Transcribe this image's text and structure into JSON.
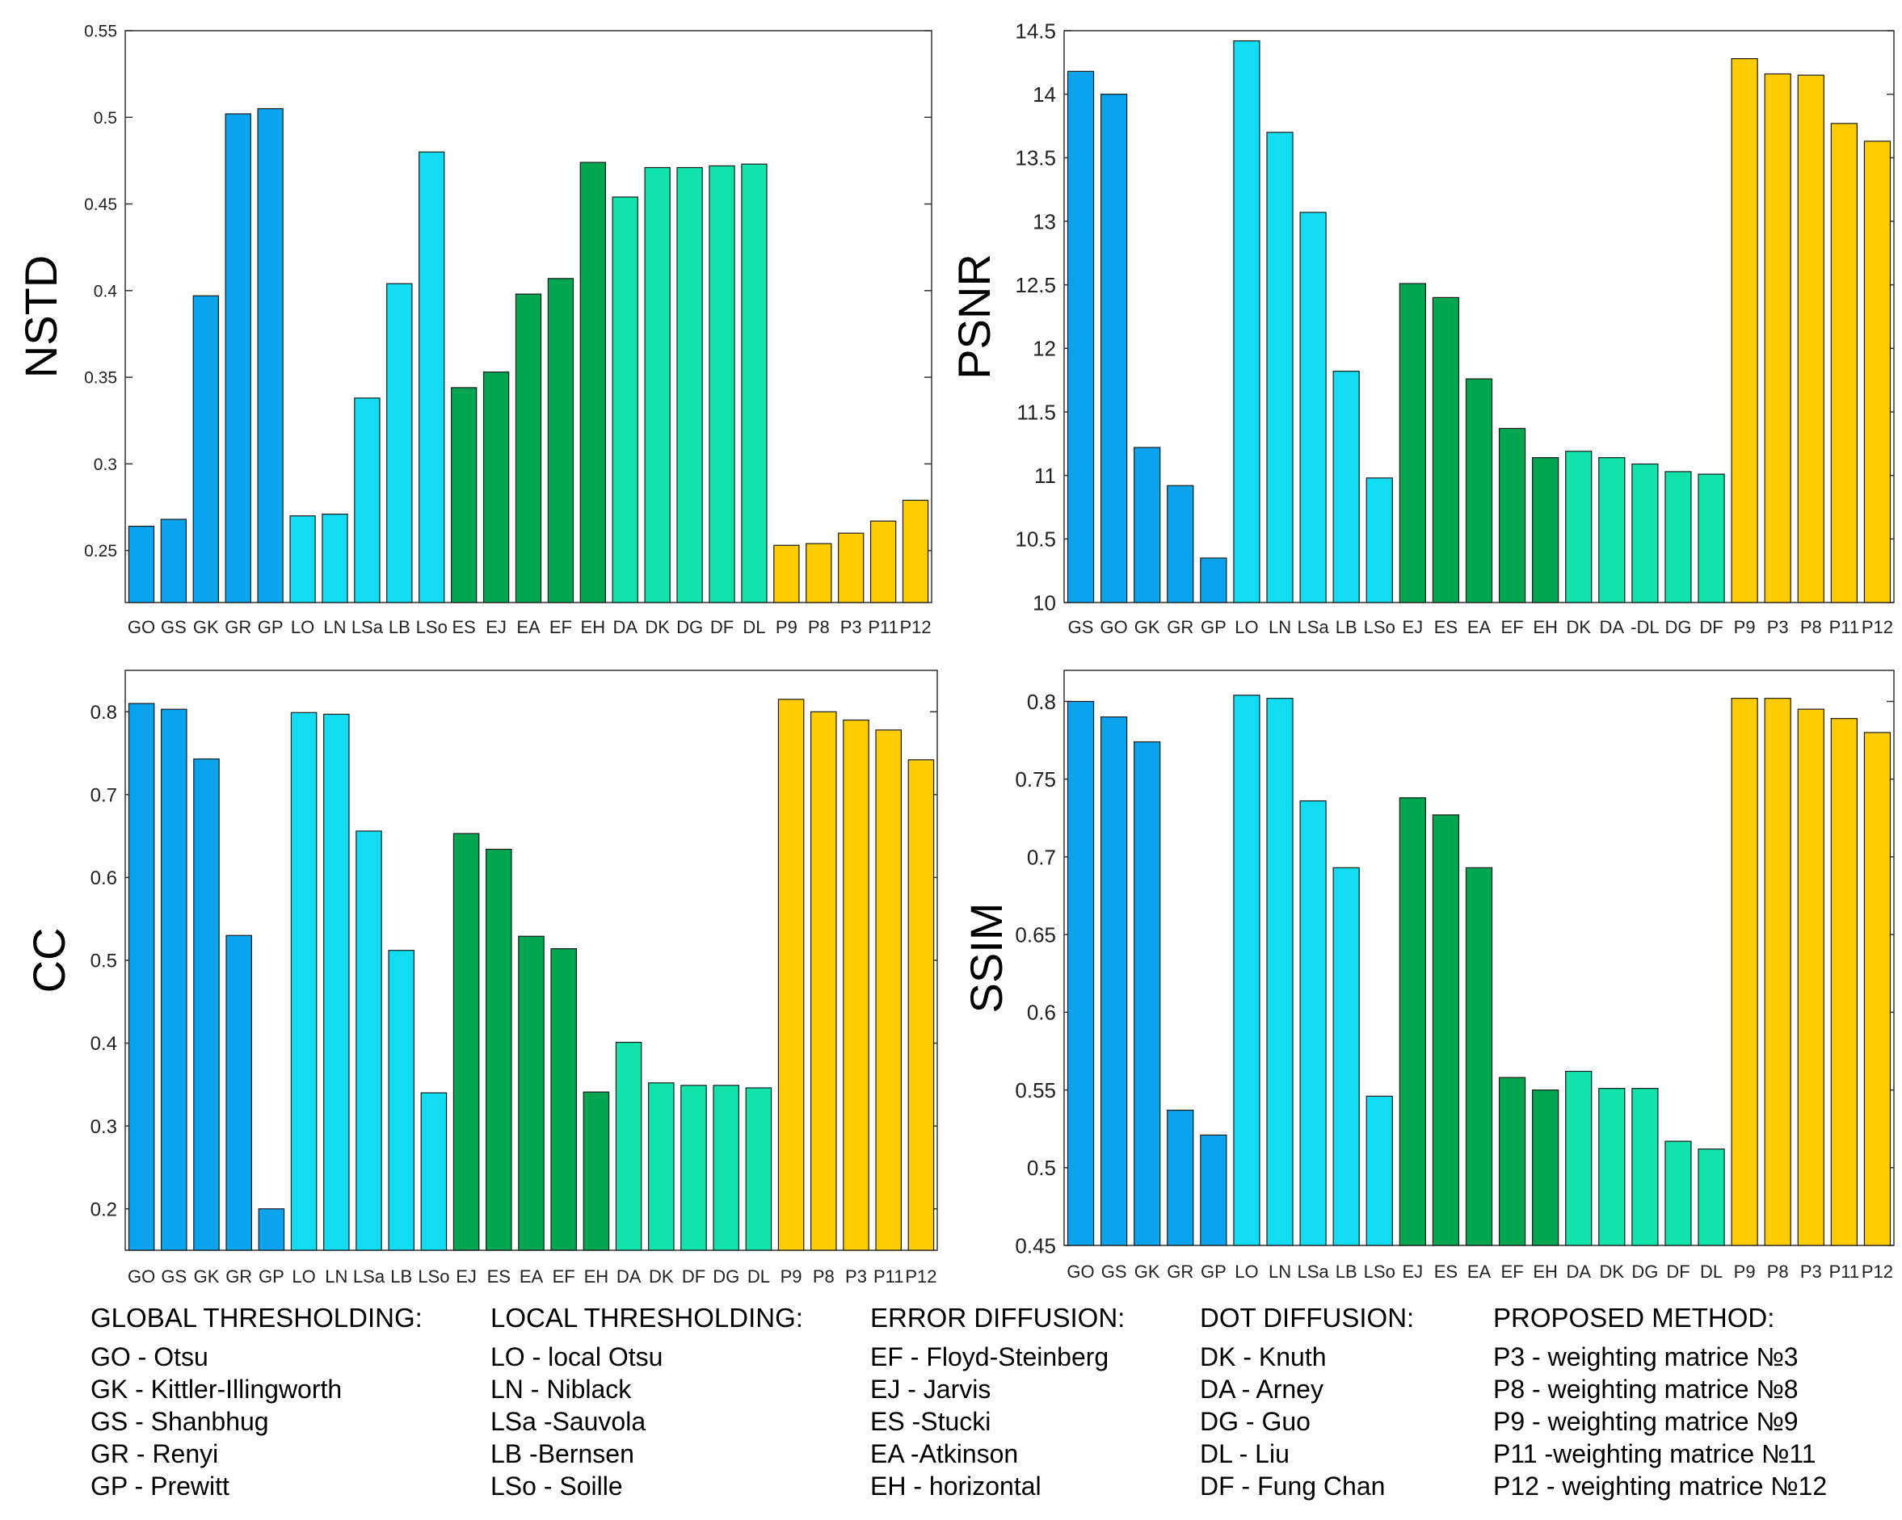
{
  "chart_data": [
    {
      "type": "bar",
      "ylabel": "NSTD",
      "ylim": [
        0.22,
        0.55
      ],
      "yticks": [
        0.25,
        0.3,
        0.35,
        0.4,
        0.45,
        0.5,
        0.55
      ],
      "tick_labels": [
        "0.25",
        "0.3",
        "0.35",
        "0.4",
        "0.45",
        "0.5",
        "0.55"
      ],
      "categories": [
        "GO",
        "GS",
        "GK",
        "GR",
        "GP",
        "LO",
        "LN",
        "LSa",
        "LB",
        "LSo",
        "ES",
        "EJ",
        "EA",
        "EF",
        "EH",
        "DA",
        "DK",
        "DG",
        "DF",
        "DL",
        "P9",
        "P8",
        "P3",
        "P11",
        "P12"
      ],
      "values": [
        0.264,
        0.268,
        0.397,
        0.502,
        0.505,
        0.27,
        0.271,
        0.338,
        0.404,
        0.48,
        0.344,
        0.353,
        0.398,
        0.407,
        0.474,
        0.454,
        0.471,
        0.471,
        0.472,
        0.473,
        0.253,
        0.254,
        0.26,
        0.267,
        0.279
      ],
      "groups": [
        "global",
        "global",
        "global",
        "global",
        "global",
        "local",
        "local",
        "local",
        "local",
        "local",
        "error",
        "error",
        "error",
        "error",
        "error",
        "dot",
        "dot",
        "dot",
        "dot",
        "dot",
        "proposed",
        "proposed",
        "proposed",
        "proposed",
        "proposed"
      ]
    },
    {
      "type": "bar",
      "ylabel": "PSNR",
      "ylim": [
        10,
        14.5
      ],
      "yticks": [
        10,
        10.5,
        11,
        11.5,
        12,
        12.5,
        13,
        13.5,
        14,
        14.5
      ],
      "tick_labels": [
        "10",
        "10.5",
        "11",
        "11.5",
        "12",
        "12.5",
        "13",
        "13.5",
        "14",
        "14.5"
      ],
      "categories": [
        "GS",
        "GO",
        "GK",
        "GR",
        "GP",
        "LO",
        "LN",
        "LSa",
        "LB",
        "LSo",
        "EJ",
        "ES",
        "EA",
        "EF",
        "EH",
        "DK",
        "DA",
        "-DL",
        "DG",
        "DF",
        "P9",
        "P3",
        "P8",
        "P11",
        "P12"
      ],
      "values": [
        14.18,
        14.0,
        11.22,
        10.92,
        10.35,
        14.42,
        13.7,
        13.07,
        11.82,
        10.98,
        12.51,
        12.4,
        11.76,
        11.37,
        11.14,
        11.19,
        11.14,
        11.09,
        11.03,
        11.01,
        14.28,
        14.16,
        14.15,
        13.77,
        13.63
      ],
      "groups": [
        "global",
        "global",
        "global",
        "global",
        "global",
        "local",
        "local",
        "local",
        "local",
        "local",
        "error",
        "error",
        "error",
        "error",
        "error",
        "dot",
        "dot",
        "dot",
        "dot",
        "dot",
        "proposed",
        "proposed",
        "proposed",
        "proposed",
        "proposed"
      ]
    },
    {
      "type": "bar",
      "ylabel": "CC",
      "ylim": [
        0.15,
        0.85
      ],
      "yticks": [
        0.2,
        0.3,
        0.4,
        0.5,
        0.6,
        0.7,
        0.8
      ],
      "tick_labels": [
        "0.2",
        "0.3",
        "0.4",
        "0.5",
        "0.6",
        "0.7",
        "0.8"
      ],
      "categories": [
        "GO",
        "GS",
        "GK",
        "GR",
        "GP",
        "LO",
        "LN",
        "LSa",
        "LB",
        "LSo",
        "EJ",
        "ES",
        "EA",
        "EF",
        "EH",
        "DA",
        "DK",
        "DF",
        "DG",
        "DL",
        "P9",
        "P8",
        "P3",
        "P11",
        "P12"
      ],
      "values": [
        0.81,
        0.803,
        0.743,
        0.53,
        0.2,
        0.799,
        0.797,
        0.656,
        0.512,
        0.34,
        0.653,
        0.634,
        0.529,
        0.514,
        0.341,
        0.401,
        0.352,
        0.349,
        0.349,
        0.346,
        0.815,
        0.8,
        0.79,
        0.778,
        0.742
      ],
      "groups": [
        "global",
        "global",
        "global",
        "global",
        "global",
        "local",
        "local",
        "local",
        "local",
        "local",
        "error",
        "error",
        "error",
        "error",
        "error",
        "dot",
        "dot",
        "dot",
        "dot",
        "dot",
        "proposed",
        "proposed",
        "proposed",
        "proposed",
        "proposed"
      ]
    },
    {
      "type": "bar",
      "ylabel": "SSIM",
      "ylim": [
        0.45,
        0.82
      ],
      "yticks": [
        0.45,
        0.5,
        0.55,
        0.6,
        0.65,
        0.7,
        0.75,
        0.8
      ],
      "tick_labels": [
        "0.45",
        "0.5",
        "0.55",
        "0.6",
        "0.65",
        "0.7",
        "0.75",
        "0.8"
      ],
      "categories": [
        "GO",
        "GS",
        "GK",
        "GR",
        "GP",
        "LO",
        "LN",
        "LSa",
        "LB",
        "LSo",
        "EJ",
        "ES",
        "EA",
        "EF",
        "EH",
        "DA",
        "DK",
        "DG",
        "DF",
        "DL",
        "P9",
        "P8",
        "P3",
        "P11",
        "P12"
      ],
      "values": [
        0.8,
        0.79,
        0.774,
        0.537,
        0.521,
        0.804,
        0.802,
        0.736,
        0.693,
        0.546,
        0.738,
        0.727,
        0.693,
        0.558,
        0.55,
        0.562,
        0.551,
        0.551,
        0.517,
        0.512,
        0.802,
        0.802,
        0.795,
        0.789,
        0.78
      ],
      "groups": [
        "global",
        "global",
        "global",
        "global",
        "global",
        "local",
        "local",
        "local",
        "local",
        "local",
        "error",
        "error",
        "error",
        "error",
        "error",
        "dot",
        "dot",
        "dot",
        "dot",
        "dot",
        "proposed",
        "proposed",
        "proposed",
        "proposed",
        "proposed"
      ]
    }
  ],
  "colors": {
    "global": "#0aa4ee",
    "local": "#12dcf2",
    "error": "#00a650",
    "dot": "#12e3aa",
    "proposed": "#ffcc00",
    "axis": "#333333"
  },
  "legend": {
    "global": {
      "heading": "GLOBAL THRESHOLDING:",
      "items": [
        "GO - Otsu",
        "GK - Kittler-Illingworth",
        "GS - Shanbhug",
        "GR - Renyi",
        "GP - Prewitt"
      ]
    },
    "local": {
      "heading": "LOCAL THRESHOLDING:",
      "items": [
        "LO - local Otsu",
        "LN - Niblack",
        "LSa -Sauvola",
        "LB -Bernsen",
        "LSo - Soille"
      ]
    },
    "error": {
      "heading": "ERROR DIFFUSION:",
      "items": [
        "EF - Floyd-Steinberg",
        "EJ - Jarvis",
        "ES -Stucki",
        "EA -Atkinson",
        "EH - horizontal"
      ]
    },
    "dot": {
      "heading": "DOT DIFFUSION:",
      "items": [
        "DK - Knuth",
        "DA - Arney",
        "DG - Guo",
        "DL - Liu",
        "DF - Fung Chan"
      ]
    },
    "proposed": {
      "heading": "PROPOSED METHOD:",
      "items": [
        "P3 - weighting matrice №3",
        "P8 - weighting matrice №8",
        "P9 - weighting matrice №9",
        "P11 -weighting matrice №11",
        "P12 - weighting matrice №12"
      ]
    }
  }
}
